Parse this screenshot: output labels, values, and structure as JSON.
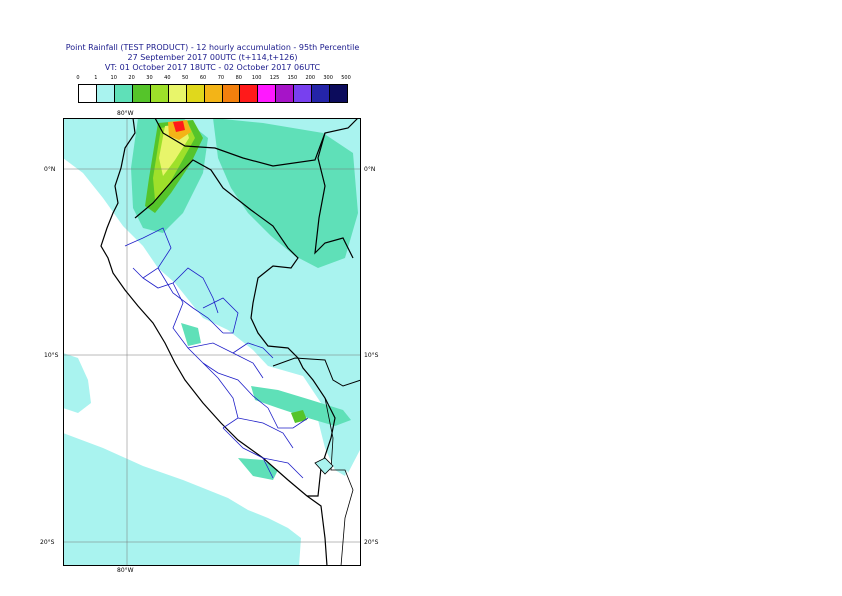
{
  "title": {
    "line1": "Point Rainfall (TEST PRODUCT) - 12 hourly accumulation - 95th Percentile",
    "line2": "27 September 2017 00UTC (t+114,t+126)",
    "line3": "VT: 01 October 2017 18UTC - 02 October 2017 06UTC"
  },
  "legend": {
    "labels": [
      "0",
      "1",
      "10",
      "20",
      "30",
      "40",
      "50",
      "60",
      "70",
      "80",
      "100",
      "125",
      "150",
      "200",
      "300",
      "500"
    ],
    "colors": [
      "#ffffff",
      "#a9f3ef",
      "#5fe0b8",
      "#55c42a",
      "#9ee02a",
      "#e8f56a",
      "#e0d81c",
      "#f3b417",
      "#f3800d",
      "#ff1a1a",
      "#ff18ff",
      "#a614c8",
      "#7840ef",
      "#2424a8",
      "#0c0c5c"
    ]
  },
  "axes": {
    "lon_top": "80°W",
    "lon_bottom": "80°W",
    "lat_left": [
      "0°N",
      "10°S",
      "20°S"
    ],
    "lat_right": [
      "0°N",
      "10°S",
      "20°S"
    ]
  }
}
